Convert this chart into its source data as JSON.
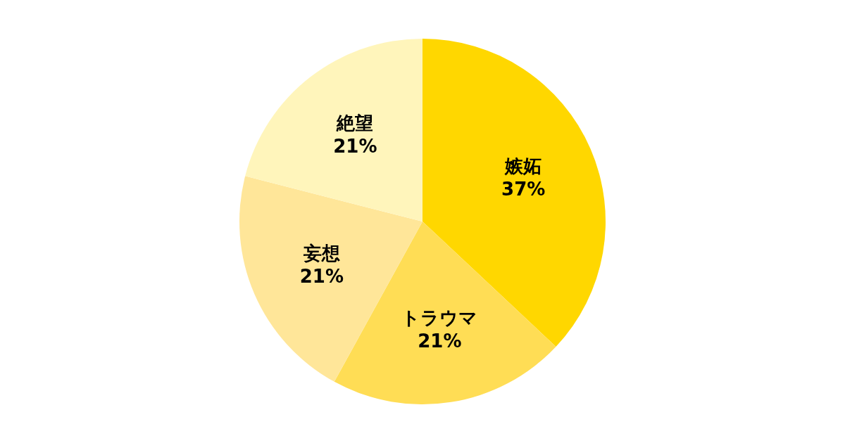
{
  "chart_data": {
    "type": "pie",
    "categories": [
      "嫉妬",
      "トラウマ",
      "妄想",
      "絶望"
    ],
    "values": [
      37,
      21,
      21,
      21
    ],
    "colors": [
      "#ffd700",
      "#ffdd55",
      "#ffe699",
      "#fff5bb"
    ],
    "value_labels": [
      "37%",
      "21%",
      "21%",
      "21%"
    ],
    "legend": false
  }
}
